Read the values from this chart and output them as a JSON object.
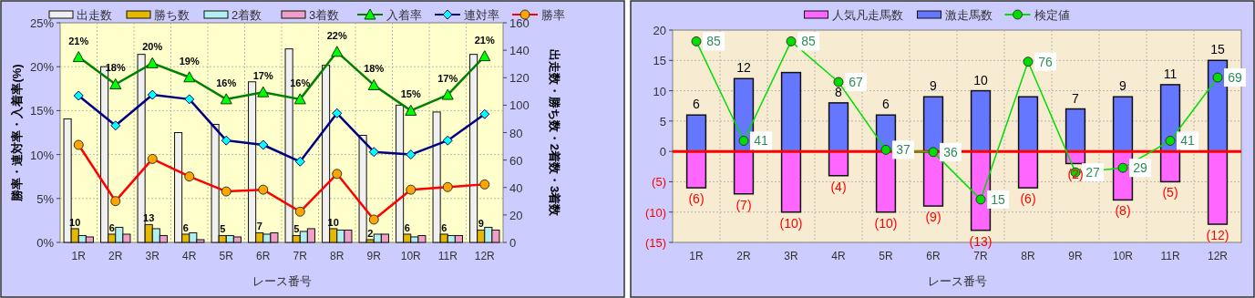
{
  "chart_data": [
    {
      "type": "bar",
      "categories": [
        "1R",
        "2R",
        "3R",
        "4R",
        "5R",
        "6R",
        "7R",
        "8R",
        "9R",
        "10R",
        "11R",
        "12R"
      ],
      "xlabel": "レース番号",
      "ylabel": "勝率・連対率・入着率(%)",
      "y2label": "出走数・勝ち数・2着数・3着数",
      "ylim": [
        0,
        25
      ],
      "yticks": [
        {
          "value": 0,
          "label": "0%"
        },
        {
          "value": 5,
          "label": "5%"
        },
        {
          "value": 10,
          "label": "10%"
        },
        {
          "value": 15,
          "label": "15%"
        },
        {
          "value": 20,
          "label": "20%"
        },
        {
          "value": 25,
          "label": "25%"
        }
      ],
      "y2lim": [
        0,
        160
      ],
      "y2ticks": [
        0,
        20,
        40,
        60,
        80,
        100,
        120,
        140,
        160
      ],
      "grid": true,
      "legend": "top",
      "series": [
        {
          "name": "出走数",
          "axis": "y2",
          "color": "#f0f0f0",
          "values": [
            90,
            128,
            137,
            80,
            86,
            117,
            141,
            129,
            78,
            100,
            95,
            137
          ]
        },
        {
          "name": "勝ち数",
          "axis": "y2",
          "color": "#e6b800",
          "values": [
            10,
            6,
            13,
            6,
            5,
            7,
            5,
            10,
            2,
            6,
            6,
            9
          ],
          "value_labels": [
            "10",
            "6",
            "13",
            "6",
            "5",
            "7",
            "5",
            "10",
            "2",
            "6",
            "6",
            "9"
          ]
        },
        {
          "name": "2着数",
          "axis": "y2",
          "color": "#b0f0f0",
          "values": [
            5,
            11,
            10,
            7,
            5,
            6,
            8,
            9,
            6,
            4,
            5,
            11
          ]
        },
        {
          "name": "3着数",
          "axis": "y2",
          "color": "#f0a0c8",
          "values": [
            4,
            6,
            5,
            2,
            4,
            7,
            10,
            9,
            6,
            5,
            5,
            9
          ]
        },
        {
          "name": "入着率",
          "type": "line",
          "marker": "triangle",
          "color": "#008000",
          "values": [
            21.1,
            18.0,
            20.4,
            18.8,
            16.3,
            17.1,
            16.3,
            21.7,
            17.9,
            15.0,
            16.8,
            21.2
          ],
          "value_labels": [
            "21%",
            "18%",
            "20%",
            "19%",
            "16%",
            "17%",
            "16%",
            "22%",
            "18%",
            "15%",
            "17%",
            "21%"
          ]
        },
        {
          "name": "連対率",
          "type": "line",
          "marker": "diamond",
          "color": "#000080",
          "values": [
            16.7,
            13.3,
            16.8,
            16.3,
            11.6,
            11.1,
            9.2,
            14.7,
            10.3,
            10.0,
            11.6,
            14.6
          ]
        },
        {
          "name": "勝率",
          "type": "line",
          "marker": "circle",
          "color": "#ff0000",
          "values": [
            11.1,
            4.7,
            9.5,
            7.5,
            5.8,
            6.0,
            3.5,
            7.8,
            2.6,
            6.0,
            6.3,
            6.6
          ]
        }
      ]
    },
    {
      "type": "bar",
      "stacked": true,
      "categories": [
        "1R",
        "2R",
        "3R",
        "4R",
        "5R",
        "6R",
        "7R",
        "8R",
        "9R",
        "10R",
        "11R",
        "12R"
      ],
      "xlabel": "レース番号",
      "ylim": [
        -15,
        20
      ],
      "yticks": [
        {
          "value": -15,
          "label": "(15)"
        },
        {
          "value": -10,
          "label": "(10)"
        },
        {
          "value": -5,
          "label": "(5)"
        },
        0,
        5,
        10,
        15,
        20
      ],
      "y2lim": [
        -4,
        90
      ],
      "grid": true,
      "legend": "top",
      "ref_lines": [
        {
          "axis": "y",
          "value": 0,
          "color": "#ff0000"
        }
      ],
      "series": [
        {
          "name": "人気凡走馬数",
          "color": "#ff66ff",
          "values": [
            -6,
            -7,
            -10,
            -4,
            -10,
            -9,
            -13,
            -6,
            -2,
            -8,
            -5,
            -12
          ],
          "value_labels": [
            "(6)",
            "(7)",
            "(10)",
            "(4)",
            "(10)",
            "(9)",
            "(13)",
            "(6)",
            "(2)",
            "(8)",
            "(5)",
            "(12)"
          ]
        },
        {
          "name": "激走馬数",
          "color": "#6677ff",
          "values": [
            6,
            12,
            13,
            8,
            6,
            9,
            10,
            9,
            7,
            9,
            11,
            15
          ],
          "value_labels": [
            "6",
            "12",
            null,
            "8",
            "6",
            "9",
            "10",
            null,
            "7",
            "9",
            "11",
            "15"
          ]
        },
        {
          "name": "検定値",
          "type": "line",
          "axis": "y2",
          "marker": "circle",
          "color": "#00dd00",
          "values": [
            85,
            41,
            85,
            67,
            37,
            36,
            15,
            76,
            27,
            29,
            41,
            69
          ],
          "data_labels": true
        }
      ]
    }
  ]
}
